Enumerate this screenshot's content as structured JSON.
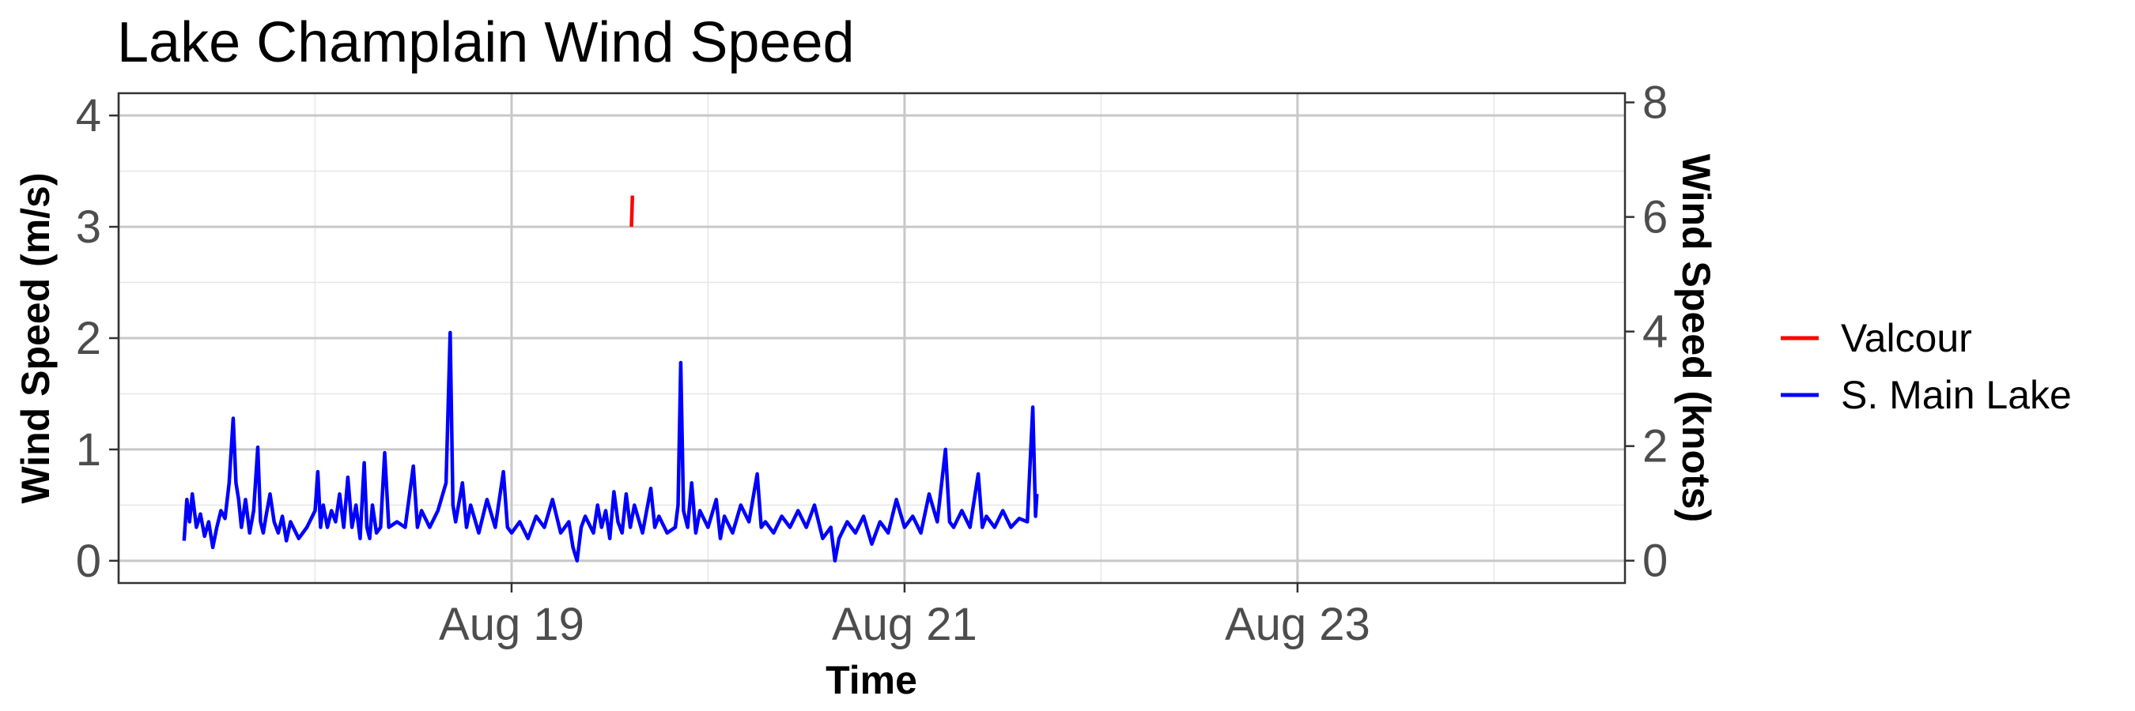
{
  "chart_data": {
    "type": "line",
    "title": "Lake Champlain Wind Speed",
    "xlabel": "Time",
    "ylabel": "Wind Speed (m/s)",
    "y2label": "Wind Speed (knots)",
    "xlim": [
      "2025-08-17T00:00",
      "2025-08-24T16:00"
    ],
    "ylim": [
      -0.2,
      4.2
    ],
    "y2lim": [
      -0.39,
      8.16
    ],
    "x_ticks": [
      {
        "t": "2025-08-19T00:00",
        "label": "Aug 19"
      },
      {
        "t": "2025-08-21T00:00",
        "label": "Aug 21"
      },
      {
        "t": "2025-08-23T00:00",
        "label": "Aug 23"
      }
    ],
    "y_ticks": [
      0,
      1,
      2,
      3,
      4
    ],
    "y2_ticks": [
      0,
      2,
      4,
      6,
      8
    ],
    "grid": true,
    "legend_position": "right",
    "series": [
      {
        "name": "Valcour",
        "color": "#ff0000",
        "points": [
          [
            "2025-08-19T14:38",
            3.0
          ],
          [
            "2025-08-19T14:42",
            3.12
          ],
          [
            "2025-08-19T14:46",
            3.28
          ]
        ]
      },
      {
        "name": "S. Main Lake",
        "color": "#0000ff",
        "points": [
          [
            "2025-08-17T08:00",
            0.18
          ],
          [
            "2025-08-17T08:20",
            0.55
          ],
          [
            "2025-08-17T08:40",
            0.35
          ],
          [
            "2025-08-17T09:00",
            0.6
          ],
          [
            "2025-08-17T09:30",
            0.3
          ],
          [
            "2025-08-17T10:00",
            0.42
          ],
          [
            "2025-08-17T10:30",
            0.22
          ],
          [
            "2025-08-17T11:00",
            0.35
          ],
          [
            "2025-08-17T11:30",
            0.12
          ],
          [
            "2025-08-17T12:00",
            0.3
          ],
          [
            "2025-08-17T12:30",
            0.45
          ],
          [
            "2025-08-17T13:00",
            0.38
          ],
          [
            "2025-08-17T13:30",
            0.7
          ],
          [
            "2025-08-17T14:00",
            1.28
          ],
          [
            "2025-08-17T14:20",
            0.7
          ],
          [
            "2025-08-17T14:40",
            0.55
          ],
          [
            "2025-08-17T15:00",
            0.3
          ],
          [
            "2025-08-17T15:30",
            0.55
          ],
          [
            "2025-08-17T16:00",
            0.25
          ],
          [
            "2025-08-17T16:30",
            0.45
          ],
          [
            "2025-08-17T17:00",
            1.02
          ],
          [
            "2025-08-17T17:20",
            0.35
          ],
          [
            "2025-08-17T17:40",
            0.25
          ],
          [
            "2025-08-17T18:00",
            0.4
          ],
          [
            "2025-08-17T18:30",
            0.6
          ],
          [
            "2025-08-17T19:00",
            0.35
          ],
          [
            "2025-08-17T19:30",
            0.25
          ],
          [
            "2025-08-17T20:00",
            0.4
          ],
          [
            "2025-08-17T20:30",
            0.18
          ],
          [
            "2025-08-17T21:00",
            0.35
          ],
          [
            "2025-08-17T22:00",
            0.2
          ],
          [
            "2025-08-17T23:00",
            0.3
          ],
          [
            "2025-08-18T00:00",
            0.45
          ],
          [
            "2025-08-18T00:20",
            0.8
          ],
          [
            "2025-08-18T00:40",
            0.3
          ],
          [
            "2025-08-18T01:00",
            0.5
          ],
          [
            "2025-08-18T01:30",
            0.3
          ],
          [
            "2025-08-18T02:00",
            0.45
          ],
          [
            "2025-08-18T02:30",
            0.35
          ],
          [
            "2025-08-18T03:00",
            0.6
          ],
          [
            "2025-08-18T03:30",
            0.3
          ],
          [
            "2025-08-18T04:00",
            0.75
          ],
          [
            "2025-08-18T04:30",
            0.3
          ],
          [
            "2025-08-18T05:00",
            0.5
          ],
          [
            "2025-08-18T05:30",
            0.2
          ],
          [
            "2025-08-18T06:00",
            0.88
          ],
          [
            "2025-08-18T06:20",
            0.3
          ],
          [
            "2025-08-18T06:40",
            0.2
          ],
          [
            "2025-08-18T07:00",
            0.5
          ],
          [
            "2025-08-18T07:30",
            0.25
          ],
          [
            "2025-08-18T08:00",
            0.3
          ],
          [
            "2025-08-18T08:30",
            0.97
          ],
          [
            "2025-08-18T09:00",
            0.3
          ],
          [
            "2025-08-18T10:00",
            0.35
          ],
          [
            "2025-08-18T11:00",
            0.3
          ],
          [
            "2025-08-18T12:00",
            0.85
          ],
          [
            "2025-08-18T12:30",
            0.3
          ],
          [
            "2025-08-18T13:00",
            0.45
          ],
          [
            "2025-08-18T14:00",
            0.3
          ],
          [
            "2025-08-18T15:00",
            0.45
          ],
          [
            "2025-08-18T16:00",
            0.7
          ],
          [
            "2025-08-18T16:30",
            2.05
          ],
          [
            "2025-08-18T16:50",
            0.5
          ],
          [
            "2025-08-18T17:10",
            0.35
          ],
          [
            "2025-08-18T18:00",
            0.7
          ],
          [
            "2025-08-18T18:30",
            0.3
          ],
          [
            "2025-08-18T19:00",
            0.5
          ],
          [
            "2025-08-18T20:00",
            0.25
          ],
          [
            "2025-08-18T21:00",
            0.55
          ],
          [
            "2025-08-18T22:00",
            0.3
          ],
          [
            "2025-08-18T23:00",
            0.8
          ],
          [
            "2025-08-18T23:30",
            0.3
          ],
          [
            "2025-08-19T00:00",
            0.25
          ],
          [
            "2025-08-19T01:00",
            0.35
          ],
          [
            "2025-08-19T02:00",
            0.2
          ],
          [
            "2025-08-19T03:00",
            0.4
          ],
          [
            "2025-08-19T04:00",
            0.3
          ],
          [
            "2025-08-19T05:00",
            0.55
          ],
          [
            "2025-08-19T06:00",
            0.25
          ],
          [
            "2025-08-19T07:00",
            0.35
          ],
          [
            "2025-08-19T07:30",
            0.12
          ],
          [
            "2025-08-19T08:00",
            0.0
          ],
          [
            "2025-08-19T08:30",
            0.3
          ],
          [
            "2025-08-19T09:00",
            0.4
          ],
          [
            "2025-08-19T10:00",
            0.25
          ],
          [
            "2025-08-19T10:30",
            0.5
          ],
          [
            "2025-08-19T11:00",
            0.3
          ],
          [
            "2025-08-19T11:30",
            0.45
          ],
          [
            "2025-08-19T12:00",
            0.2
          ],
          [
            "2025-08-19T12:30",
            0.62
          ],
          [
            "2025-08-19T13:00",
            0.35
          ],
          [
            "2025-08-19T13:30",
            0.25
          ],
          [
            "2025-08-19T14:00",
            0.6
          ],
          [
            "2025-08-19T14:30",
            0.3
          ],
          [
            "2025-08-19T15:00",
            0.5
          ],
          [
            "2025-08-19T16:00",
            0.25
          ],
          [
            "2025-08-19T17:00",
            0.65
          ],
          [
            "2025-08-19T17:30",
            0.3
          ],
          [
            "2025-08-19T18:00",
            0.4
          ],
          [
            "2025-08-19T19:00",
            0.25
          ],
          [
            "2025-08-19T20:00",
            0.3
          ],
          [
            "2025-08-19T20:20",
            0.5
          ],
          [
            "2025-08-19T20:40",
            1.78
          ],
          [
            "2025-08-19T21:00",
            0.45
          ],
          [
            "2025-08-19T21:30",
            0.3
          ],
          [
            "2025-08-19T22:00",
            0.7
          ],
          [
            "2025-08-19T22:30",
            0.25
          ],
          [
            "2025-08-19T23:00",
            0.45
          ],
          [
            "2025-08-20T00:00",
            0.3
          ],
          [
            "2025-08-20T01:00",
            0.55
          ],
          [
            "2025-08-20T01:30",
            0.2
          ],
          [
            "2025-08-20T02:00",
            0.4
          ],
          [
            "2025-08-20T03:00",
            0.25
          ],
          [
            "2025-08-20T04:00",
            0.5
          ],
          [
            "2025-08-20T05:00",
            0.35
          ],
          [
            "2025-08-20T06:00",
            0.78
          ],
          [
            "2025-08-20T06:30",
            0.3
          ],
          [
            "2025-08-20T07:00",
            0.35
          ],
          [
            "2025-08-20T08:00",
            0.25
          ],
          [
            "2025-08-20T09:00",
            0.4
          ],
          [
            "2025-08-20T10:00",
            0.3
          ],
          [
            "2025-08-20T11:00",
            0.45
          ],
          [
            "2025-08-20T12:00",
            0.3
          ],
          [
            "2025-08-20T13:00",
            0.5
          ],
          [
            "2025-08-20T14:00",
            0.2
          ],
          [
            "2025-08-20T15:00",
            0.3
          ],
          [
            "2025-08-20T15:30",
            0.0
          ],
          [
            "2025-08-20T16:00",
            0.2
          ],
          [
            "2025-08-20T17:00",
            0.35
          ],
          [
            "2025-08-20T18:00",
            0.25
          ],
          [
            "2025-08-20T19:00",
            0.4
          ],
          [
            "2025-08-20T20:00",
            0.15
          ],
          [
            "2025-08-20T21:00",
            0.35
          ],
          [
            "2025-08-20T22:00",
            0.25
          ],
          [
            "2025-08-20T23:00",
            0.55
          ],
          [
            "2025-08-21T00:00",
            0.3
          ],
          [
            "2025-08-21T01:00",
            0.4
          ],
          [
            "2025-08-21T02:00",
            0.25
          ],
          [
            "2025-08-21T03:00",
            0.6
          ],
          [
            "2025-08-21T04:00",
            0.35
          ],
          [
            "2025-08-21T05:00",
            1.0
          ],
          [
            "2025-08-21T05:30",
            0.35
          ],
          [
            "2025-08-21T06:00",
            0.3
          ],
          [
            "2025-08-21T07:00",
            0.45
          ],
          [
            "2025-08-21T08:00",
            0.3
          ],
          [
            "2025-08-21T09:00",
            0.78
          ],
          [
            "2025-08-21T09:30",
            0.3
          ],
          [
            "2025-08-21T10:00",
            0.4
          ],
          [
            "2025-08-21T11:00",
            0.3
          ],
          [
            "2025-08-21T12:00",
            0.45
          ],
          [
            "2025-08-21T13:00",
            0.3
          ],
          [
            "2025-08-21T14:00",
            0.38
          ],
          [
            "2025-08-21T15:00",
            0.35
          ],
          [
            "2025-08-21T15:40",
            1.38
          ],
          [
            "2025-08-21T16:00",
            0.4
          ],
          [
            "2025-08-21T16:10",
            0.6
          ]
        ]
      }
    ]
  }
}
